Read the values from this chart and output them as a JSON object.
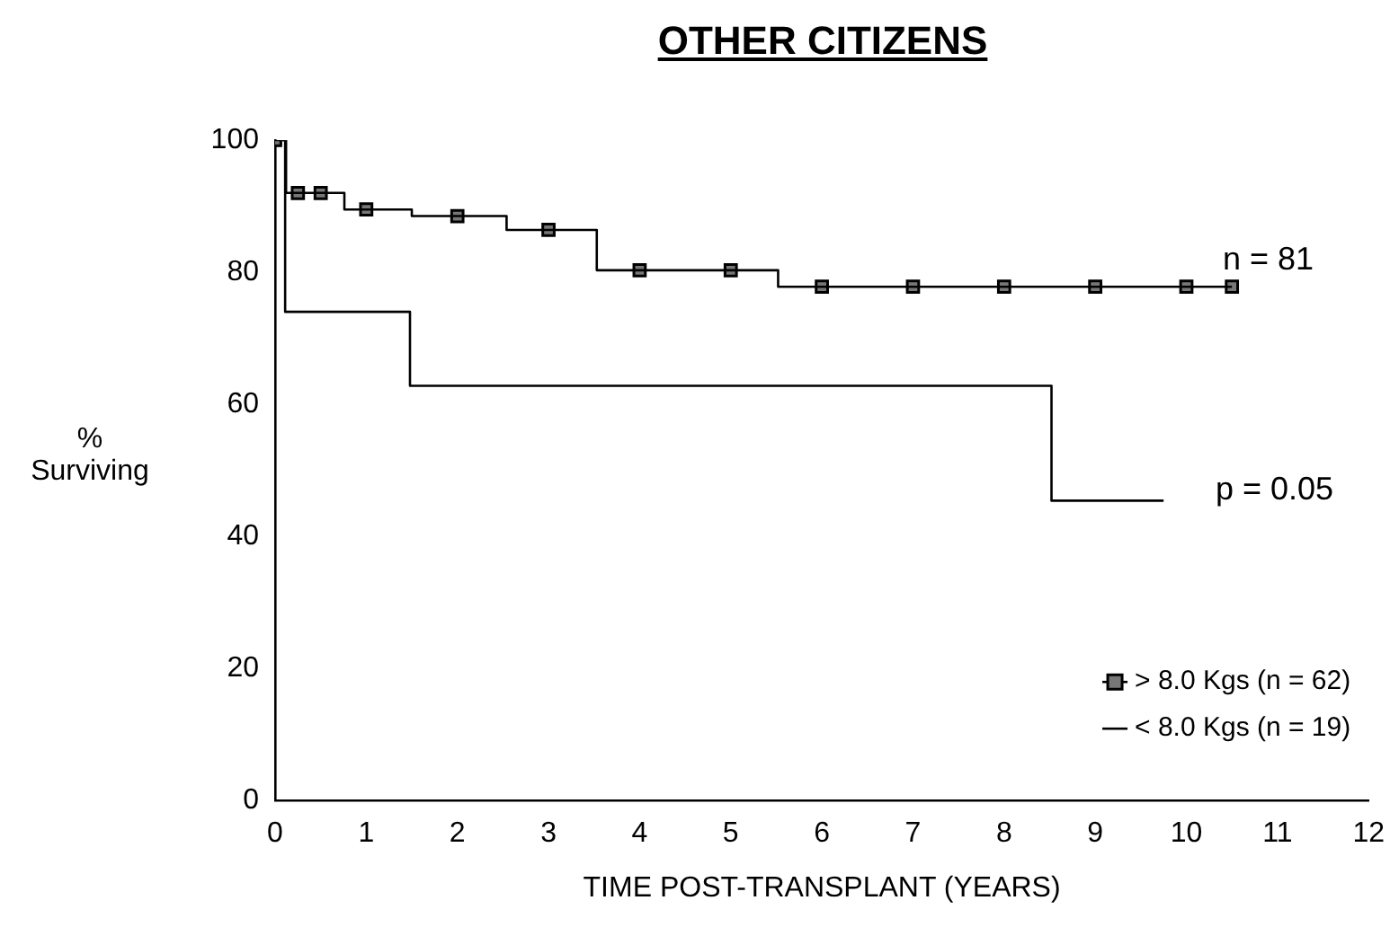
{
  "chart_data": {
    "type": "step",
    "title": "OTHER CITIZENS",
    "xlabel": "TIME POST-TRANSPLANT (YEARS)",
    "ylabel": "% Surviving",
    "annotations": [
      "n = 81",
      "p = 0.05"
    ],
    "series": [
      {
        "color": "#000000",
        "x": [
          0,
          0.12,
          0.76,
          1.5,
          2.54,
          3.53,
          5.52,
          10.5
        ],
        "values": [
          100,
          92,
          89.5,
          88.5,
          86.4,
          80.3,
          77.8,
          77.8
        ]
      },
      {
        "type": "scatter",
        "name": "> 8.0 Kgs (n = 62)",
        "color": "#000000",
        "marker": "square",
        "x": [
          0,
          0.25,
          0.5,
          1,
          2,
          3,
          4,
          5,
          6,
          7,
          8,
          9,
          10,
          10.5
        ],
        "values": [
          100,
          92,
          92,
          89.5,
          88.5,
          86.4,
          80.3,
          80.3,
          77.8,
          77.8,
          77.8,
          77.8,
          77.8,
          77.8
        ]
      },
      {
        "name": "< 8.0 Kgs (n = 19)",
        "color": "#000000",
        "x": [
          0,
          0.11,
          1.48,
          8.52,
          9.75
        ],
        "values": [
          100,
          74,
          62.8,
          45.4,
          45.4
        ]
      }
    ],
    "xlim": [
      0,
      12
    ],
    "xticks": [
      0,
      1,
      2,
      3,
      4,
      5,
      6,
      7,
      8,
      9,
      10,
      11,
      12
    ],
    "ylim": [
      0,
      100
    ],
    "yticks": [
      0,
      20,
      40,
      60,
      80,
      100
    ],
    "grid": false,
    "legend": "bottom right"
  }
}
